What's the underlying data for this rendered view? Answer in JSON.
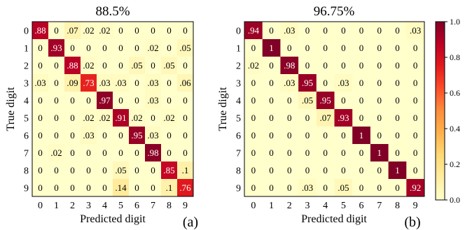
{
  "chart_data": [
    {
      "type": "heatmap",
      "title": "88.5%",
      "panel_label": "(a)",
      "xlabel": "Predicted digit",
      "ylabel": "True digit",
      "x_categories": [
        "0",
        "1",
        "2",
        "3",
        "4",
        "5",
        "6",
        "7",
        "8",
        "9"
      ],
      "y_categories": [
        "0",
        "1",
        "2",
        "3",
        "4",
        "5",
        "6",
        "7",
        "8",
        "9"
      ],
      "values": [
        [
          0.88,
          0,
          0.07,
          0.02,
          0.02,
          0,
          0,
          0,
          0,
          0
        ],
        [
          0,
          0.93,
          0,
          0,
          0,
          0,
          0,
          0.02,
          0,
          0.05
        ],
        [
          0,
          0,
          0.88,
          0.02,
          0,
          0,
          0.05,
          0,
          0.05,
          0
        ],
        [
          0.03,
          0,
          0.09,
          0.73,
          0.03,
          0.03,
          0,
          0.03,
          0,
          0.06
        ],
        [
          0,
          0,
          0,
          0,
          0.97,
          0,
          0,
          0.03,
          0,
          0
        ],
        [
          0,
          0,
          0,
          0.02,
          0.02,
          0.91,
          0.02,
          0,
          0.02,
          0
        ],
        [
          0,
          0,
          0,
          0.03,
          0,
          0,
          0.95,
          0.03,
          0,
          0
        ],
        [
          0,
          0.02,
          0,
          0,
          0,
          0,
          0,
          0.98,
          0,
          0
        ],
        [
          0,
          0,
          0,
          0,
          0,
          0.05,
          0,
          0,
          0.85,
          0.1
        ],
        [
          0,
          0,
          0,
          0,
          0,
          0.14,
          0,
          0,
          0.1,
          0.76
        ]
      ],
      "cell_labels": [
        [
          ".88",
          "0",
          ".07",
          ".02",
          ".02",
          "0",
          "0",
          "0",
          "0",
          "0"
        ],
        [
          "0",
          ".93",
          "0",
          "0",
          "0",
          "0",
          "0",
          ".02",
          "0",
          ".05"
        ],
        [
          "0",
          "0",
          ".88",
          ".02",
          "0",
          "0",
          ".05",
          "0",
          ".05",
          "0"
        ],
        [
          ".03",
          "0",
          ".09",
          ".73",
          ".03",
          ".03",
          "0",
          ".03",
          "0",
          ".06"
        ],
        [
          "0",
          "0",
          "0",
          "0",
          ".97",
          "0",
          "0",
          ".03",
          "0",
          "0"
        ],
        [
          "0",
          "0",
          "0",
          ".02",
          ".02",
          ".91",
          ".02",
          "0",
          ".02",
          "0"
        ],
        [
          "0",
          "0",
          "0",
          ".03",
          "0",
          "0",
          ".95",
          ".03",
          "0",
          "0"
        ],
        [
          "0",
          ".02",
          "0",
          "0",
          "0",
          "0",
          "0",
          ".98",
          "0",
          "0"
        ],
        [
          "0",
          "0",
          "0",
          "0",
          "0",
          ".05",
          "0",
          "0",
          ".85",
          ".1"
        ],
        [
          "0",
          "0",
          "0",
          "0",
          "0",
          ".14",
          "0",
          "0",
          ".1",
          ".76"
        ]
      ]
    },
    {
      "type": "heatmap",
      "title": "96.75%",
      "panel_label": "(b)",
      "xlabel": "Predicted digit",
      "ylabel": "True digit",
      "x_categories": [
        "0",
        "1",
        "2",
        "3",
        "4",
        "5",
        "6",
        "7",
        "8",
        "9"
      ],
      "y_categories": [
        "0",
        "1",
        "2",
        "3",
        "4",
        "5",
        "6",
        "7",
        "8",
        "9"
      ],
      "values": [
        [
          0.94,
          0,
          0.03,
          0,
          0,
          0,
          0,
          0,
          0,
          0.03
        ],
        [
          0,
          1,
          0,
          0,
          0,
          0,
          0,
          0,
          0,
          0
        ],
        [
          0.02,
          0,
          0.98,
          0,
          0,
          0,
          0,
          0,
          0,
          0
        ],
        [
          0,
          0,
          0.03,
          0.95,
          0,
          0.03,
          0,
          0,
          0,
          0
        ],
        [
          0,
          0,
          0,
          0.05,
          0.95,
          0,
          0,
          0,
          0,
          0
        ],
        [
          0,
          0,
          0,
          0,
          0.07,
          0.93,
          0,
          0,
          0,
          0
        ],
        [
          0,
          0,
          0,
          0,
          0,
          0,
          1,
          0,
          0,
          0
        ],
        [
          0,
          0,
          0,
          0,
          0,
          0,
          0,
          1,
          0,
          0
        ],
        [
          0,
          0,
          0,
          0,
          0,
          0,
          0,
          0,
          1,
          0
        ],
        [
          0,
          0,
          0,
          0.03,
          0,
          0.05,
          0,
          0,
          0,
          0.92
        ]
      ],
      "cell_labels": [
        [
          ".94",
          "0",
          ".03",
          "0",
          "0",
          "0",
          "0",
          "0",
          "0",
          ".03"
        ],
        [
          "0",
          "1",
          "0",
          "0",
          "0",
          "0",
          "0",
          "0",
          "0",
          "0"
        ],
        [
          ".02",
          "0",
          ".98",
          "0",
          "0",
          "0",
          "0",
          "0",
          "0",
          "0"
        ],
        [
          "0",
          "0",
          ".03",
          ".95",
          "0",
          ".03",
          "0",
          "0",
          "0",
          "0"
        ],
        [
          "0",
          "0",
          "0",
          ".05",
          ".95",
          "0",
          "0",
          "0",
          "0",
          "0"
        ],
        [
          "0",
          "0",
          "0",
          "0",
          ".07",
          ".93",
          "0",
          "0",
          "0",
          "0"
        ],
        [
          "0",
          "0",
          "0",
          "0",
          "0",
          "0",
          "1",
          "0",
          "0",
          "0"
        ],
        [
          "0",
          "0",
          "0",
          "0",
          "0",
          "0",
          "0",
          "1",
          "0",
          "0"
        ],
        [
          "0",
          "0",
          "0",
          "0",
          "0",
          "0",
          "0",
          "0",
          "1",
          "0"
        ],
        [
          "0",
          "0",
          "0",
          ".03",
          "0",
          ".05",
          "0",
          "0",
          "0",
          ".92"
        ]
      ]
    }
  ],
  "colorbar": {
    "colormap": "YlOrRd",
    "range": [
      0,
      1
    ],
    "ticks": [
      "0.0",
      "0.2",
      "0.4",
      "0.6",
      "0.8",
      "1.0"
    ],
    "tick_values": [
      0,
      0.2,
      0.4,
      0.6,
      0.8,
      1.0
    ]
  }
}
